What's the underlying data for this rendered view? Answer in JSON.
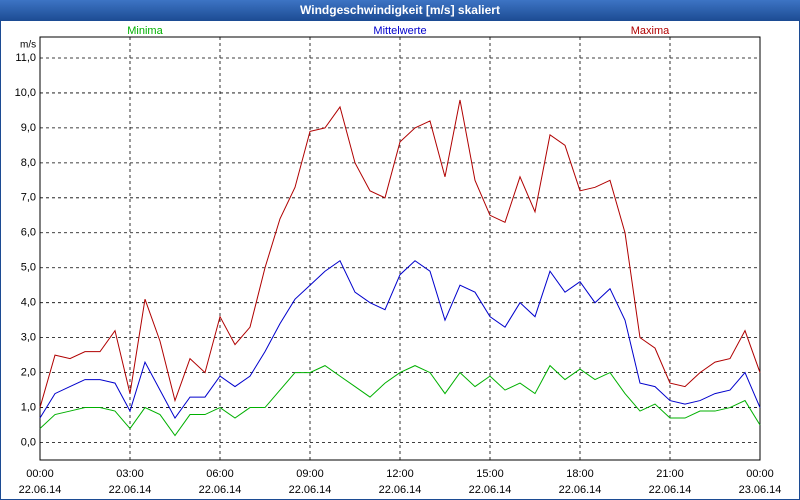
{
  "chart_data": {
    "type": "line",
    "title": "Windgeschwindigkeit [m/s] skaliert",
    "y_label": "m/s",
    "x": [
      0,
      0.5,
      1,
      1.5,
      2,
      2.5,
      3,
      3.5,
      4,
      4.5,
      5,
      5.5,
      6,
      6.5,
      7,
      7.5,
      8,
      8.5,
      9,
      9.5,
      10,
      10.5,
      11,
      11.5,
      12,
      12.5,
      13,
      13.5,
      14,
      14.5,
      15,
      15.5,
      16,
      16.5,
      17,
      17.5,
      18,
      18.5,
      19,
      19.5,
      20,
      20.5,
      21,
      21.5,
      22,
      22.5,
      23,
      23.5,
      24
    ],
    "series": [
      {
        "name": "Minima",
        "color": "#00b000",
        "values": [
          0.4,
          0.8,
          0.9,
          1.0,
          1.0,
          0.9,
          0.4,
          1.0,
          0.8,
          0.2,
          0.8,
          0.8,
          1.0,
          0.7,
          1.0,
          1.0,
          1.5,
          2.0,
          2.0,
          2.2,
          1.9,
          1.6,
          1.3,
          1.7,
          2.0,
          2.2,
          2.0,
          1.4,
          2.0,
          1.6,
          1.9,
          1.5,
          1.7,
          1.4,
          2.2,
          1.8,
          2.1,
          1.8,
          2.0,
          1.4,
          0.9,
          1.1,
          0.7,
          0.7,
          0.9,
          0.9,
          1.0,
          1.2,
          0.5
        ]
      },
      {
        "name": "Mittelwerte",
        "color": "#0000cc",
        "values": [
          0.7,
          1.4,
          1.6,
          1.8,
          1.8,
          1.7,
          0.9,
          2.3,
          1.5,
          0.7,
          1.3,
          1.3,
          1.9,
          1.6,
          1.9,
          2.6,
          3.4,
          4.1,
          4.5,
          4.9,
          5.2,
          4.3,
          4.0,
          3.8,
          4.8,
          5.2,
          4.9,
          3.5,
          4.5,
          4.3,
          3.6,
          3.3,
          4.0,
          3.6,
          4.9,
          4.3,
          4.6,
          4.0,
          4.4,
          3.5,
          1.7,
          1.6,
          1.2,
          1.1,
          1.2,
          1.4,
          1.5,
          2.0,
          1.0
        ]
      },
      {
        "name": "Maxima",
        "color": "#b00000",
        "values": [
          1.0,
          2.5,
          2.4,
          2.6,
          2.6,
          3.2,
          1.4,
          4.1,
          2.9,
          1.2,
          2.4,
          2.0,
          3.6,
          2.8,
          3.3,
          5.0,
          6.4,
          7.3,
          8.9,
          9.0,
          9.6,
          8.0,
          7.2,
          7.0,
          8.6,
          9.0,
          9.2,
          7.6,
          9.8,
          7.5,
          6.5,
          6.3,
          7.6,
          6.6,
          8.8,
          8.5,
          7.2,
          7.3,
          7.5,
          6.0,
          3.0,
          2.7,
          1.7,
          1.6,
          2.0,
          2.3,
          2.4,
          3.2,
          2.0
        ]
      }
    ],
    "xlim": [
      0,
      24
    ],
    "xticks": [
      {
        "value": 0,
        "label": "00:00",
        "date": "22.06.14"
      },
      {
        "value": 3,
        "label": "03:00",
        "date": "22.06.14"
      },
      {
        "value": 6,
        "label": "06:00",
        "date": "22.06.14"
      },
      {
        "value": 9,
        "label": "09:00",
        "date": "22.06.14"
      },
      {
        "value": 12,
        "label": "12:00",
        "date": "22.06.14"
      },
      {
        "value": 15,
        "label": "15:00",
        "date": "22.06.14"
      },
      {
        "value": 18,
        "label": "18:00",
        "date": "22.06.14"
      },
      {
        "value": 21,
        "label": "21:00",
        "date": "22.06.14"
      },
      {
        "value": 24,
        "label": "00:00",
        "date": "23.06.14"
      }
    ],
    "ylim": [
      -0.5,
      11.6
    ],
    "yticks": [
      {
        "value": 0,
        "label": "0,0"
      },
      {
        "value": 1,
        "label": "1,0"
      },
      {
        "value": 2,
        "label": "2,0"
      },
      {
        "value": 3,
        "label": "3,0"
      },
      {
        "value": 4,
        "label": "4,0"
      },
      {
        "value": 5,
        "label": "5,0"
      },
      {
        "value": 6,
        "label": "6,0"
      },
      {
        "value": 7,
        "label": "7,0"
      },
      {
        "value": 8,
        "label": "8,0"
      },
      {
        "value": 9,
        "label": "9,0"
      },
      {
        "value": 10,
        "label": "10,0"
      },
      {
        "value": 11,
        "label": "11,0"
      }
    ],
    "grid": true
  }
}
